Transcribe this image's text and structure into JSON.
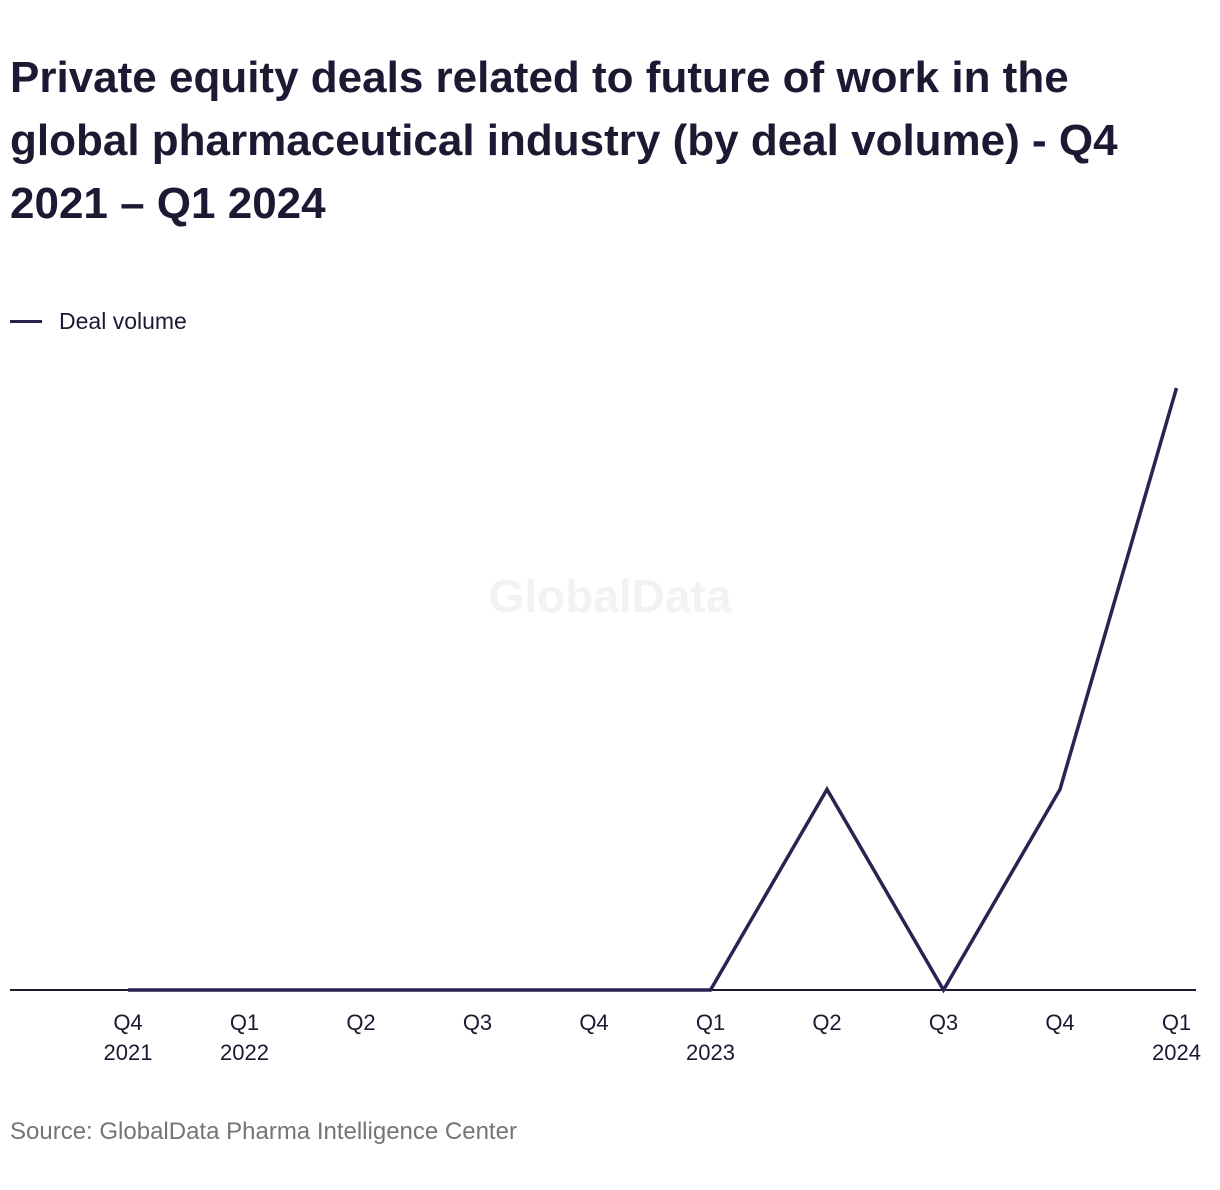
{
  "title": "Private equity deals related to future of work in the global pharmaceutical industry (by deal volume) - Q4 2021 – Q1 2024",
  "source": "Source: GlobalData Pharma Intelligence Center",
  "watermark": "GlobalData",
  "colors": {
    "line": "#2e2150",
    "axis": "#1c1a33",
    "text": "#1c1a33",
    "source": "#757575"
  },
  "chart_data": {
    "type": "line",
    "title": "Private equity deals related to future of work in the global pharmaceutical industry (by deal volume) - Q4 2021 – Q1 2024",
    "categories": [
      [
        "Q4",
        "2021"
      ],
      [
        "Q1",
        "2022"
      ],
      [
        "Q2",
        ""
      ],
      [
        "Q3",
        ""
      ],
      [
        "Q4",
        ""
      ],
      [
        "Q1",
        "2023"
      ],
      [
        "Q2",
        ""
      ],
      [
        "Q3",
        ""
      ],
      [
        "Q4",
        ""
      ],
      [
        "Q1",
        "2024"
      ]
    ],
    "series": [
      {
        "name": "Deal volume",
        "values": [
          0,
          0,
          0,
          0,
          0,
          0,
          1,
          0,
          1,
          3
        ]
      }
    ],
    "ylim": [
      0,
      3
    ],
    "grid": false,
    "legend_position": "top-left",
    "xlabel": "",
    "ylabel": ""
  }
}
